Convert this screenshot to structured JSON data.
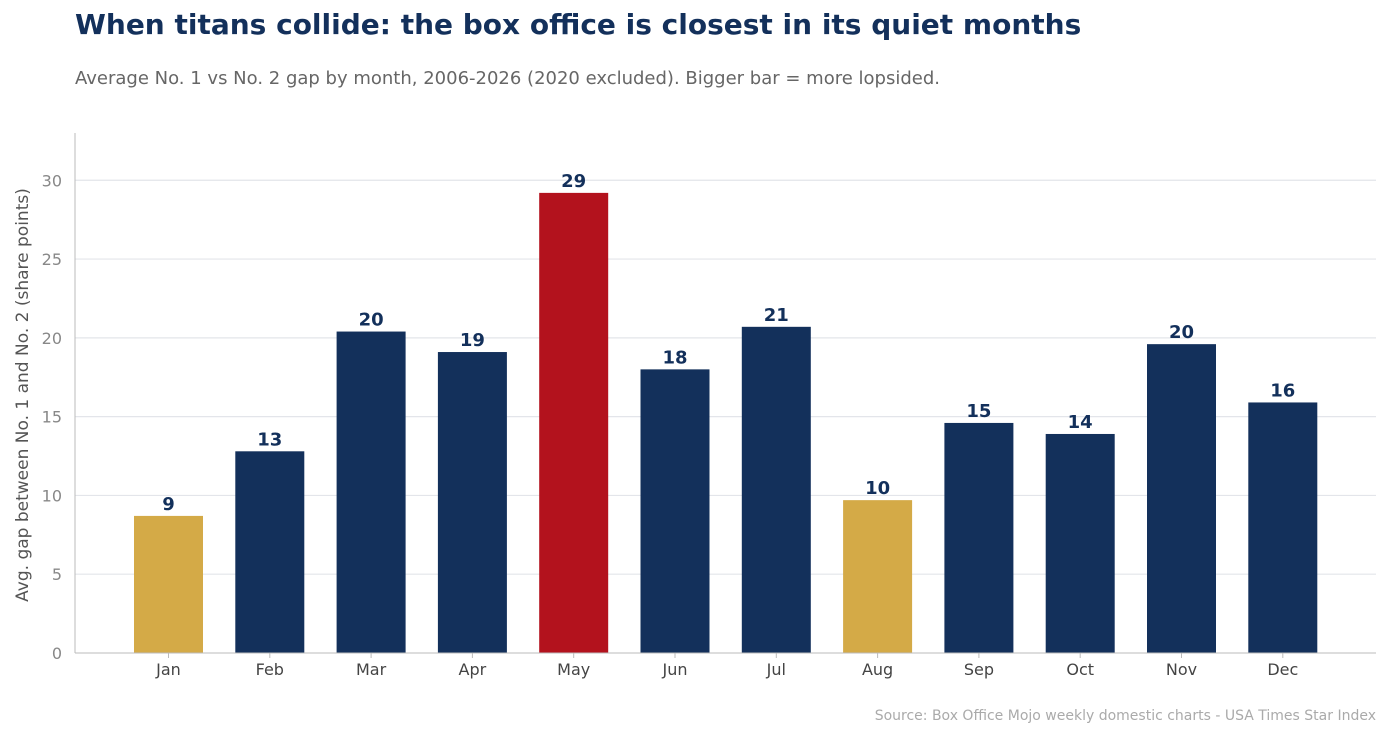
{
  "chart_data": {
    "type": "bar",
    "title": "When titans collide: the box office is closest in its quiet months",
    "subtitle": "Average No. 1 vs No. 2 gap by month, 2006-2026 (2020 excluded). Bigger bar = more lopsided.",
    "ylabel": "Avg. gap between No. 1 and No. 2 (share points)",
    "xlabel": "",
    "source": "Source: Box Office Mojo weekly domestic charts - USA Times Star Index",
    "categories": [
      "Jan",
      "Feb",
      "Mar",
      "Apr",
      "May",
      "Jun",
      "Jul",
      "Aug",
      "Sep",
      "Oct",
      "Nov",
      "Dec"
    ],
    "values": [
      8.7,
      12.8,
      20.4,
      19.1,
      29.2,
      18.0,
      20.7,
      9.7,
      14.6,
      13.9,
      19.6,
      15.9
    ],
    "data_labels": [
      "9",
      "13",
      "20",
      "19",
      "29",
      "18",
      "21",
      "10",
      "15",
      "14",
      "20",
      "16"
    ],
    "bar_colors": [
      "#d4aa47",
      "#13305b",
      "#13305b",
      "#13305b",
      "#b3121d",
      "#13305b",
      "#13305b",
      "#d4aa47",
      "#13305b",
      "#13305b",
      "#13305b",
      "#13305b"
    ],
    "label_color": "#13305b",
    "yticks": [
      0,
      5,
      10,
      15,
      20,
      25,
      30
    ],
    "ylim": [
      0,
      33
    ],
    "grid": "horizontal"
  }
}
